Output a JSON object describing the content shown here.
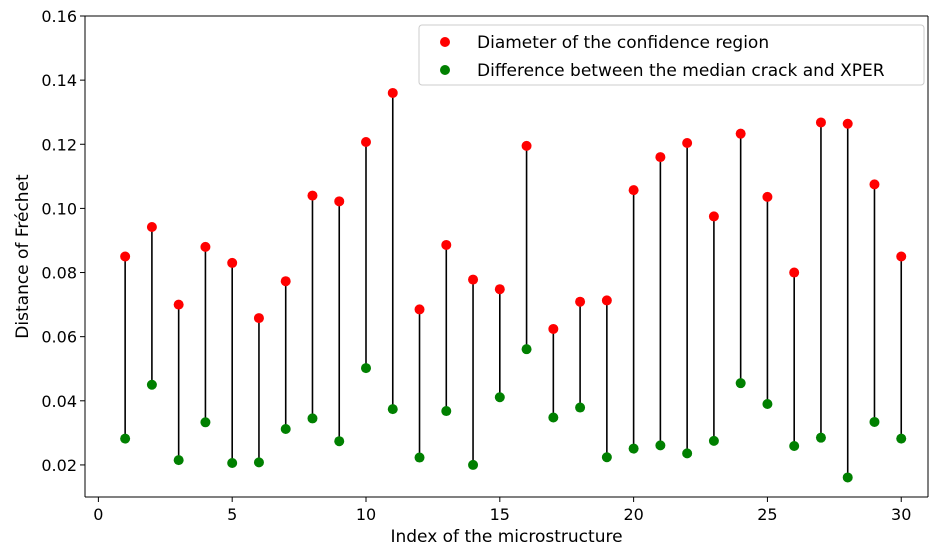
{
  "chart_data": {
    "type": "scatter",
    "title": "",
    "xlabel": "Index of the microstructure",
    "ylabel": "Distance of Fréchet",
    "xlim": [
      -0.5,
      31
    ],
    "ylim": [
      0.01,
      0.16
    ],
    "xticks": [
      0,
      5,
      10,
      15,
      20,
      25,
      30
    ],
    "yticks": [
      0.02,
      0.04,
      0.06,
      0.08,
      0.1,
      0.12,
      0.14,
      0.16
    ],
    "ytick_labels": [
      "0.02",
      "0.04",
      "0.06",
      "0.08",
      "0.10",
      "0.12",
      "0.14",
      "0.16"
    ],
    "grid": false,
    "legend_position": "top-right",
    "connectors": "vertical black lines joining the two series at each index",
    "x": [
      1,
      2,
      3,
      4,
      5,
      6,
      7,
      8,
      9,
      10,
      11,
      12,
      13,
      14,
      15,
      16,
      17,
      18,
      19,
      20,
      21,
      22,
      23,
      24,
      25,
      26,
      27,
      28,
      29,
      30
    ],
    "series": [
      {
        "name": "Diameter of the confidence region",
        "color": "#ff0000",
        "values": [
          0.085,
          0.0942,
          0.07,
          0.088,
          0.083,
          0.0658,
          0.0773,
          0.104,
          0.1022,
          0.1207,
          0.136,
          0.0685,
          0.0886,
          0.0778,
          0.0748,
          0.1195,
          0.0624,
          0.0709,
          0.0713,
          0.1057,
          0.116,
          0.1204,
          0.0975,
          0.1233,
          0.1036,
          0.08,
          0.1268,
          0.1264,
          0.1075,
          0.085
        ]
      },
      {
        "name": "Difference between the median crack and XPER",
        "color": "#008000",
        "values": [
          0.0282,
          0.045,
          0.0215,
          0.0333,
          0.0206,
          0.0208,
          0.0312,
          0.0345,
          0.0274,
          0.0502,
          0.0374,
          0.0223,
          0.0368,
          0.02,
          0.0411,
          0.0561,
          0.0348,
          0.0379,
          0.0224,
          0.0251,
          0.0261,
          0.0236,
          0.0275,
          0.0455,
          0.039,
          0.0259,
          0.0285,
          0.0161,
          0.0334,
          0.0282
        ]
      }
    ]
  }
}
